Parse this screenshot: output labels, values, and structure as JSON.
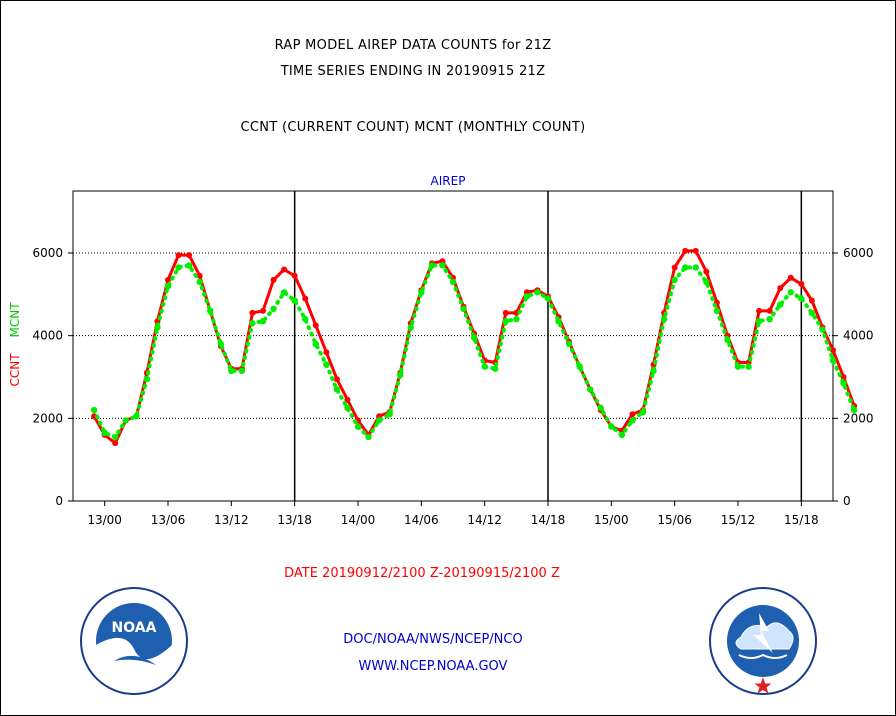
{
  "header": {
    "title_line1": "RAP MODEL AIREP DATA COUNTS for 21Z",
    "title_line2": "TIME SERIES ENDING IN 20190915 21Z",
    "title_line3": "CCNT (CURRENT COUNT) MCNT (MONTHLY COUNT)"
  },
  "footer": {
    "date_range": "DATE 20190912/2100 Z-20190915/2100 Z",
    "agency": "DOC/NOAA/NWS/NCEP/NCO",
    "url": "WWW.NCEP.NOAA.GOV"
  },
  "logos": {
    "noaa_text": "NOAA",
    "nws_text": "NATIONAL WEATHER SERVICE"
  },
  "colors": {
    "ccnt": "#ff0000",
    "mcnt": "#00ee00",
    "axis": "#000000",
    "panel_label": "#0000cc"
  },
  "chart_data": {
    "type": "line",
    "panel_label": "AIREP",
    "ylabel_ccnt": "CCNT",
    "ylabel_mcnt": "MCNT",
    "ylim": [
      0,
      7500
    ],
    "yticks": [
      0,
      2000,
      4000,
      6000
    ],
    "grid": "horizontal dotted at 2000, 4000, 6000",
    "xlim_hours": [
      -2,
      70
    ],
    "xticks": [
      {
        "hour": 1,
        "label": "13/00"
      },
      {
        "hour": 7,
        "label": "13/06"
      },
      {
        "hour": 13,
        "label": "13/12"
      },
      {
        "hour": 19,
        "label": "13/18"
      },
      {
        "hour": 25,
        "label": "14/00"
      },
      {
        "hour": 31,
        "label": "14/06"
      },
      {
        "hour": 37,
        "label": "14/12"
      },
      {
        "hour": 43,
        "label": "14/18"
      },
      {
        "hour": 49,
        "label": "15/00"
      },
      {
        "hour": 55,
        "label": "15/06"
      },
      {
        "hour": 61,
        "label": "15/12"
      },
      {
        "hour": 67,
        "label": "15/18"
      }
    ],
    "day_dividers_hours": [
      19,
      43,
      67
    ],
    "series": [
      {
        "name": "CCNT",
        "values": [
          2050,
          1600,
          1400,
          1950,
          2050,
          3100,
          4350,
          5350,
          5950,
          5950,
          5450,
          4600,
          3750,
          3200,
          3200,
          4550,
          4600,
          5350,
          5600,
          5450,
          4900,
          4250,
          3600,
          2950,
          2450,
          1950,
          1600,
          2050,
          2150,
          3100,
          4300,
          5100,
          5750,
          5800,
          5400,
          4700,
          4050,
          3400,
          3350,
          4550,
          4550,
          5050,
          5100,
          4950,
          4450,
          3850,
          3250,
          2700,
          2200,
          1800,
          1700,
          2100,
          2200,
          3300,
          4550,
          5650,
          6050,
          6050,
          5550,
          4800,
          4000,
          3350,
          3350,
          4600,
          4600,
          5150,
          5400,
          5250,
          4850,
          4200,
          3650,
          3000,
          2300
        ]
      },
      {
        "name": "MCNT",
        "values": [
          2200,
          1650,
          1550,
          1950,
          2050,
          2950,
          4200,
          5200,
          5650,
          5700,
          5300,
          4600,
          3800,
          3150,
          3150,
          4300,
          4350,
          4650,
          5050,
          4850,
          4400,
          3800,
          3300,
          2700,
          2250,
          1800,
          1550,
          1950,
          2100,
          3050,
          4200,
          5050,
          5700,
          5700,
          5300,
          4650,
          3950,
          3250,
          3200,
          4350,
          4400,
          4950,
          5050,
          4900,
          4350,
          3800,
          3250,
          2700,
          2250,
          1800,
          1600,
          1950,
          2150,
          3150,
          4400,
          5350,
          5650,
          5650,
          5300,
          4600,
          3900,
          3250,
          3250,
          4350,
          4400,
          4750,
          5050,
          4900,
          4550,
          4150,
          3400,
          2850,
          2200
        ]
      }
    ]
  }
}
